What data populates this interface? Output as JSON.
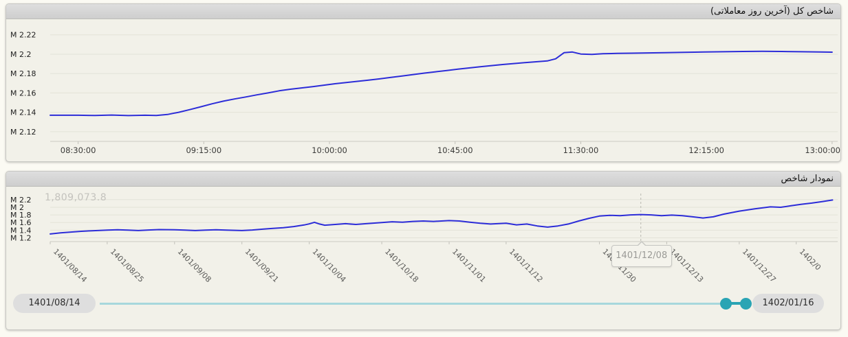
{
  "colors": {
    "line_blue": "#2c2cd8",
    "slider_teal": "#2aa4b4",
    "slider_track_light": "#a7d7dc",
    "panel_bg": "#f2f1e9",
    "header_bg": "#d6d6d6"
  },
  "panels": [
    {
      "title": "شاخص کل (آخرین روز معاملاتی)"
    },
    {
      "title": "نمودار شاخص",
      "hover_value": "1,809,073.8",
      "hover_date": "1401/12/08"
    }
  ],
  "slider": {
    "start": "1401/08/14",
    "end": "1402/01/16"
  },
  "chart_data": [
    {
      "type": "line",
      "title": "شاخص کل (آخرین روز معاملاتی)",
      "xlabel": "",
      "ylabel": "",
      "legend": "none",
      "grid": "horizontal",
      "x_ticks": [
        "08:30:00",
        "09:15:00",
        "10:00:00",
        "10:45:00",
        "11:30:00",
        "12:15:00",
        "13:00:00"
      ],
      "x_tick_values": [
        0,
        45,
        90,
        135,
        180,
        225,
        270
      ],
      "xlim": [
        -10,
        272
      ],
      "y_ticks": [
        "M 2.22",
        "M 2.2",
        "M 2.18",
        "M 2.16",
        "M 2.14",
        "M 2.12"
      ],
      "y_tick_values": [
        2.22,
        2.2,
        2.18,
        2.16,
        2.14,
        2.12
      ],
      "ylim": [
        2.11,
        2.229
      ],
      "line_color": "#2c2cd8",
      "x_unit": "minutes_after_08:30:00",
      "y_unit": "index_millions",
      "points": [
        [
          -10,
          2.137
        ],
        [
          0,
          2.137
        ],
        [
          6,
          2.1368
        ],
        [
          12,
          2.1372
        ],
        [
          18,
          2.1366
        ],
        [
          24,
          2.137
        ],
        [
          28,
          2.1368
        ],
        [
          32,
          2.1378
        ],
        [
          36,
          2.14
        ],
        [
          40,
          2.1428
        ],
        [
          44,
          2.1458
        ],
        [
          48,
          2.1488
        ],
        [
          52,
          2.1515
        ],
        [
          56,
          2.1538
        ],
        [
          60,
          2.1558
        ],
        [
          64,
          2.158
        ],
        [
          68,
          2.16
        ],
        [
          72,
          2.1622
        ],
        [
          76,
          2.1638
        ],
        [
          80,
          2.1652
        ],
        [
          84,
          2.1665
        ],
        [
          88,
          2.168
        ],
        [
          92,
          2.1695
        ],
        [
          96,
          2.1707
        ],
        [
          100,
          2.172
        ],
        [
          104,
          2.1732
        ],
        [
          108,
          2.1745
        ],
        [
          112,
          2.176
        ],
        [
          116,
          2.1775
        ],
        [
          120,
          2.179
        ],
        [
          124,
          2.1805
        ],
        [
          128,
          2.1818
        ],
        [
          132,
          2.1832
        ],
        [
          136,
          2.1845
        ],
        [
          140,
          2.1858
        ],
        [
          144,
          2.187
        ],
        [
          148,
          2.1882
        ],
        [
          152,
          2.1893
        ],
        [
          156,
          2.1903
        ],
        [
          160,
          2.1913
        ],
        [
          164,
          2.1922
        ],
        [
          168,
          2.193
        ],
        [
          171,
          2.1952
        ],
        [
          174,
          2.2015
        ],
        [
          177,
          2.2022
        ],
        [
          180,
          2.2002
        ],
        [
          184,
          2.1998
        ],
        [
          188,
          2.2005
        ],
        [
          193,
          2.2008
        ],
        [
          198,
          2.201
        ],
        [
          204,
          2.2013
        ],
        [
          210,
          2.2016
        ],
        [
          217,
          2.2019
        ],
        [
          224,
          2.2022
        ],
        [
          231,
          2.2025
        ],
        [
          238,
          2.2028
        ],
        [
          245,
          2.203
        ],
        [
          252,
          2.2028
        ],
        [
          259,
          2.2025
        ],
        [
          266,
          2.2022
        ],
        [
          270,
          2.2021
        ]
      ]
    },
    {
      "type": "line",
      "title": "نمودار شاخص",
      "xlabel": "",
      "ylabel": "",
      "legend": "none",
      "grid": "horizontal",
      "x_ticks": [
        "1401/08/14",
        "1401/08/25",
        "1401/09/08",
        "1401/09/21",
        "1401/10/04",
        "1401/10/18",
        "1401/11/01",
        "1401/11/12",
        "1401/11/30",
        "1401/12/13",
        "1401/12/27",
        "1402/0"
      ],
      "x_tick_values": [
        0,
        11,
        24,
        37,
        50,
        64,
        77,
        88,
        106,
        119,
        133,
        144
      ],
      "xlim": [
        0,
        152
      ],
      "y_ticks": [
        "M 2.2",
        "M 2",
        "M 1.8",
        "M 1.6",
        "M 1.4",
        "M 1.2"
      ],
      "y_tick_values": [
        2.2,
        2.0,
        1.8,
        1.6,
        1.4,
        1.2
      ],
      "ylim": [
        1.1,
        2.36
      ],
      "line_color": "#2c2cd8",
      "x_unit": "days_after_1401/08/14",
      "y_unit": "index_millions",
      "hover": {
        "x": 114,
        "date": "1401/12/08",
        "value_label": "1,809,073.8"
      },
      "points": [
        [
          0,
          1.3
        ],
        [
          2,
          1.33
        ],
        [
          4,
          1.35
        ],
        [
          6,
          1.37
        ],
        [
          8,
          1.385
        ],
        [
          11,
          1.4
        ],
        [
          13,
          1.41
        ],
        [
          15,
          1.4
        ],
        [
          17,
          1.39
        ],
        [
          19,
          1.405
        ],
        [
          21,
          1.415
        ],
        [
          24,
          1.41
        ],
        [
          26,
          1.4
        ],
        [
          28,
          1.39
        ],
        [
          30,
          1.4
        ],
        [
          32,
          1.41
        ],
        [
          34,
          1.4
        ],
        [
          37,
          1.39
        ],
        [
          39,
          1.405
        ],
        [
          41,
          1.425
        ],
        [
          43,
          1.445
        ],
        [
          45,
          1.465
        ],
        [
          47,
          1.495
        ],
        [
          49,
          1.535
        ],
        [
          50,
          1.565
        ],
        [
          51,
          1.605
        ],
        [
          52,
          1.56
        ],
        [
          53,
          1.53
        ],
        [
          55,
          1.55
        ],
        [
          57,
          1.57
        ],
        [
          59,
          1.55
        ],
        [
          61,
          1.57
        ],
        [
          64,
          1.6
        ],
        [
          66,
          1.62
        ],
        [
          68,
          1.61
        ],
        [
          70,
          1.63
        ],
        [
          72,
          1.64
        ],
        [
          74,
          1.63
        ],
        [
          77,
          1.65
        ],
        [
          79,
          1.64
        ],
        [
          81,
          1.61
        ],
        [
          83,
          1.58
        ],
        [
          85,
          1.56
        ],
        [
          88,
          1.58
        ],
        [
          90,
          1.54
        ],
        [
          92,
          1.56
        ],
        [
          94,
          1.51
        ],
        [
          96,
          1.48
        ],
        [
          98,
          1.51
        ],
        [
          100,
          1.56
        ],
        [
          102,
          1.64
        ],
        [
          104,
          1.71
        ],
        [
          106,
          1.77
        ],
        [
          108,
          1.79
        ],
        [
          110,
          1.78
        ],
        [
          112,
          1.8
        ],
        [
          114,
          1.809
        ],
        [
          116,
          1.8
        ],
        [
          118,
          1.78
        ],
        [
          120,
          1.795
        ],
        [
          122,
          1.78
        ],
        [
          124,
          1.75
        ],
        [
          126,
          1.72
        ],
        [
          128,
          1.75
        ],
        [
          130,
          1.82
        ],
        [
          133,
          1.9
        ],
        [
          136,
          1.96
        ],
        [
          139,
          2.01
        ],
        [
          141,
          2.0
        ],
        [
          143,
          2.04
        ],
        [
          145,
          2.08
        ],
        [
          147,
          2.11
        ],
        [
          149,
          2.15
        ],
        [
          151,
          2.19
        ]
      ]
    }
  ]
}
